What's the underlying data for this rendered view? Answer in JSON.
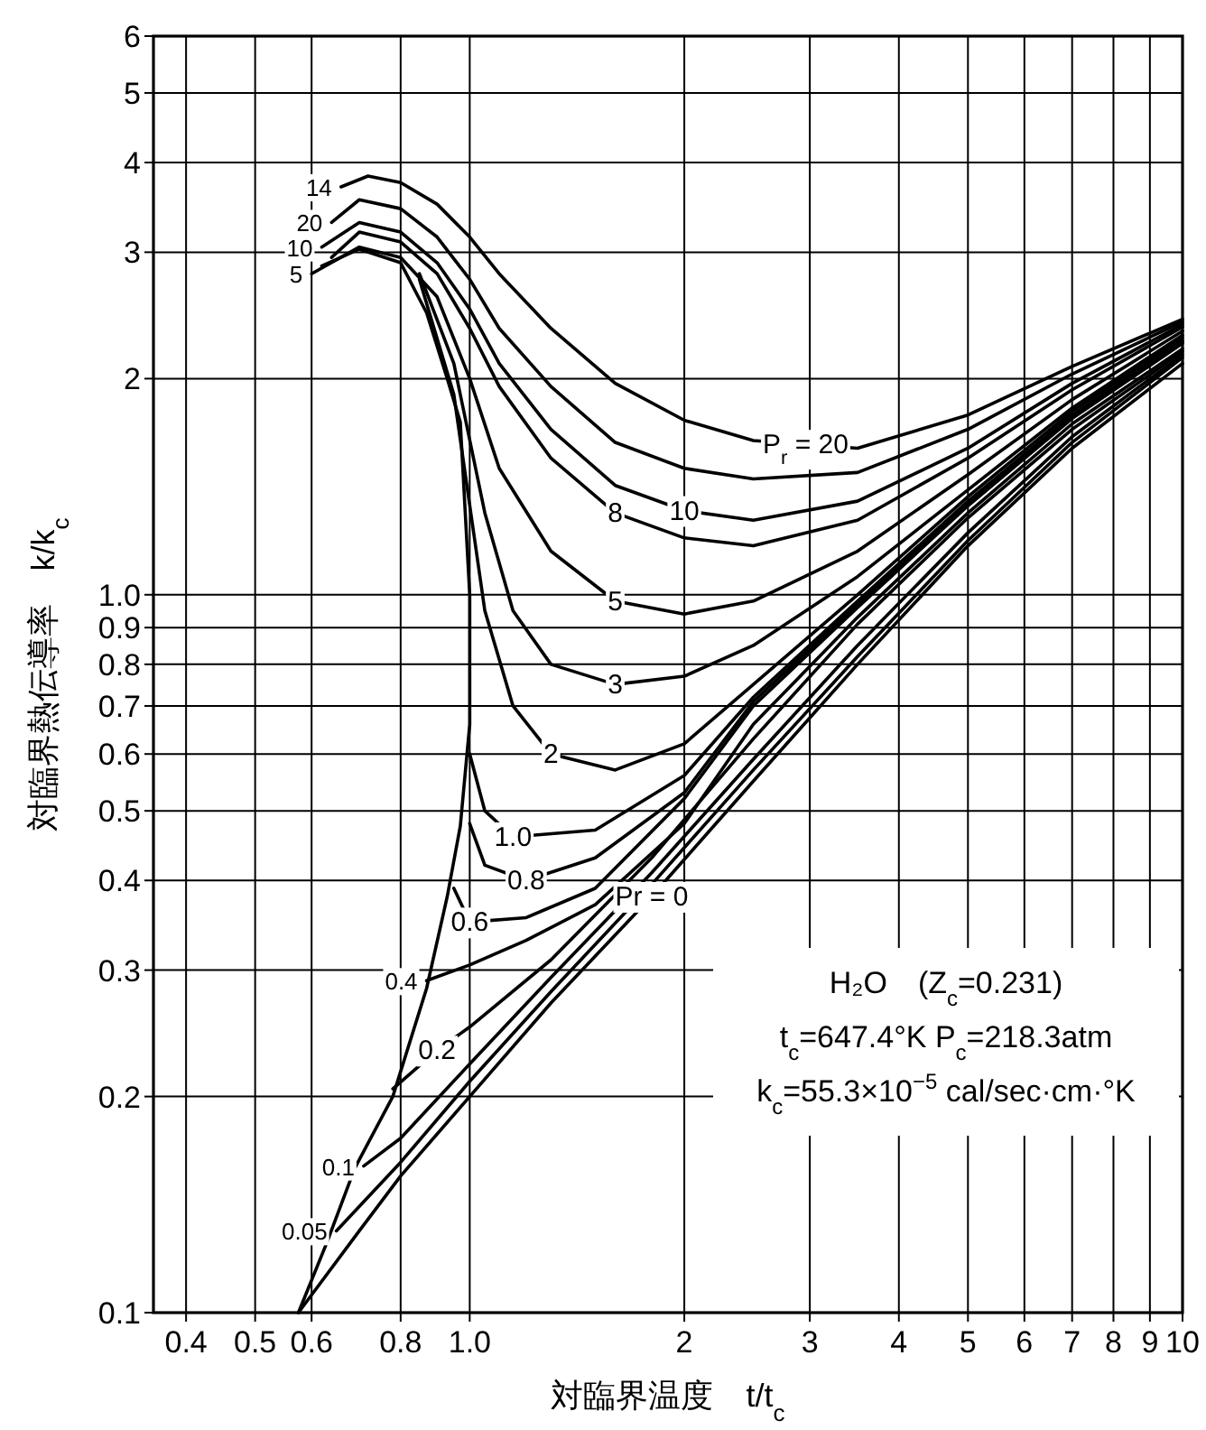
{
  "chart_data": {
    "type": "line",
    "xlabel": "対臨界温度　t/t$_{c}$",
    "ylabel": "対臨界熱伝導率　k/k$_{c}$",
    "log": "xy",
    "grid": true,
    "line_style": "solid",
    "xlim": [
      0.36,
      10
    ],
    "ylim": [
      0.1,
      6
    ],
    "xticks": [
      0.4,
      0.5,
      0.6,
      0.8,
      {
        "value": 1,
        "label": "1.0"
      },
      2,
      3,
      4,
      5,
      6,
      7,
      8,
      9,
      10
    ],
    "yticks": [
      0.1,
      0.2,
      0.3,
      0.4,
      0.5,
      0.6,
      0.7,
      0.8,
      0.9,
      {
        "value": 1,
        "label": "1.0"
      },
      2,
      3,
      4,
      5,
      6
    ],
    "series": [
      {
        "color": "#000000",
        "x": [
          0.62,
          0.7,
          0.8,
          0.87,
          0.93,
          0.97,
          1.0,
          1.0,
          0.97,
          0.93,
          0.87,
          0.78,
          0.69,
          0.63,
          0.575
        ],
        "values": [
          2.87,
          3.03,
          2.9,
          2.47,
          2.0,
          1.74,
          1.0,
          0.66,
          0.476,
          0.38,
          0.283,
          0.2,
          0.159,
          0.125,
          0.1
        ]
      },
      {
        "color": "#000000",
        "x": [
          0.575,
          0.7,
          0.8,
          1,
          1.3,
          1.8,
          2.5,
          3.5,
          5,
          7,
          10
        ],
        "values": [
          0.1,
          0.13,
          0.155,
          0.2,
          0.27,
          0.38,
          0.55,
          0.8,
          1.17,
          1.6,
          2.1
        ]
      },
      {
        "color": "#000000",
        "x": [
          0.65,
          0.8,
          1,
          1.3,
          1.8,
          2.5,
          3.5,
          5,
          7,
          10
        ],
        "values": [
          0.13,
          0.162,
          0.21,
          0.28,
          0.395,
          0.57,
          0.82,
          1.19,
          1.63,
          2.14
        ]
      },
      {
        "color": "#000000",
        "x": [
          0.71,
          0.8,
          1,
          1.3,
          1.8,
          2.5,
          3.5,
          5,
          7,
          10
        ],
        "values": [
          0.16,
          0.175,
          0.222,
          0.293,
          0.41,
          0.59,
          0.85,
          1.22,
          1.66,
          2.16
        ]
      },
      {
        "color": "#000000",
        "x": [
          0.78,
          0.9,
          1,
          1.3,
          1.8,
          2.5,
          3.5,
          5,
          7,
          10
        ],
        "values": [
          0.205,
          0.232,
          0.25,
          0.31,
          0.43,
          0.63,
          0.91,
          1.28,
          1.7,
          2.18
        ]
      },
      {
        "color": "#000000",
        "x": [
          0.87,
          1,
          1.2,
          1.5,
          2,
          2.5,
          3.5,
          5,
          7,
          10
        ],
        "values": [
          0.29,
          0.305,
          0.33,
          0.37,
          0.48,
          0.66,
          0.93,
          1.3,
          1.73,
          2.2
        ]
      },
      {
        "color": "#000000",
        "x": [
          0.95,
          1,
          1.2,
          1.5,
          2,
          2.5,
          3.5,
          5,
          7,
          10
        ],
        "values": [
          0.39,
          0.35,
          0.355,
          0.39,
          0.52,
          0.7,
          0.96,
          1.33,
          1.76,
          2.24
        ]
      },
      {
        "color": "#000000",
        "x": [
          1.0,
          1.05,
          1.2,
          1.5,
          2,
          2.5,
          3.5,
          5,
          7,
          10
        ],
        "values": [
          0.48,
          0.42,
          0.4,
          0.43,
          0.53,
          0.71,
          0.97,
          1.34,
          1.77,
          2.25
        ]
      },
      {
        "color": "#000000",
        "x": [
          1.0,
          1.05,
          1.15,
          1.5,
          2,
          2.5,
          3.5,
          5,
          7,
          10
        ],
        "values": [
          0.6,
          0.5,
          0.46,
          0.47,
          0.56,
          0.72,
          0.98,
          1.35,
          1.78,
          2.26
        ]
      },
      {
        "color": "#000000",
        "x": [
          0.85,
          0.95,
          1.05,
          1.15,
          1.3,
          1.6,
          2,
          2.5,
          3.5,
          5,
          7,
          10
        ],
        "values": [
          2.75,
          1.9,
          0.95,
          0.7,
          0.6,
          0.57,
          0.62,
          0.75,
          1.0,
          1.37,
          1.8,
          2.28
        ]
      },
      {
        "color": "#000000",
        "x": [
          0.85,
          0.95,
          1.05,
          1.15,
          1.3,
          1.6,
          2,
          2.5,
          3.5,
          5,
          7,
          10
        ],
        "values": [
          2.8,
          2.1,
          1.3,
          0.95,
          0.8,
          0.75,
          0.77,
          0.85,
          1.06,
          1.4,
          1.82,
          2.3
        ]
      },
      {
        "color": "#000000",
        "x": [
          0.6,
          0.7,
          0.8,
          0.9,
          1.0,
          1.1,
          1.3,
          1.6,
          2,
          2.5,
          3.5,
          5,
          7,
          10
        ],
        "values": [
          2.8,
          3.05,
          2.95,
          2.6,
          2.0,
          1.5,
          1.15,
          0.98,
          0.94,
          0.98,
          1.15,
          1.47,
          1.87,
          2.33
        ]
      },
      {
        "color": "#000000",
        "x": [
          0.64,
          0.7,
          0.8,
          0.9,
          1.0,
          1.1,
          1.3,
          1.6,
          2,
          2.5,
          3.5,
          5,
          7,
          10
        ],
        "values": [
          2.95,
          3.2,
          3.1,
          2.8,
          2.35,
          1.95,
          1.55,
          1.3,
          1.2,
          1.17,
          1.27,
          1.55,
          1.93,
          2.36
        ]
      },
      {
        "color": "#000000",
        "x": [
          0.62,
          0.7,
          0.8,
          0.9,
          1.0,
          1.1,
          1.3,
          1.6,
          2,
          2.5,
          3.5,
          5,
          7,
          10
        ],
        "values": [
          3.05,
          3.3,
          3.2,
          2.9,
          2.5,
          2.1,
          1.7,
          1.42,
          1.31,
          1.27,
          1.35,
          1.6,
          1.97,
          2.38
        ]
      },
      {
        "color": "#000000",
        "x": [
          0.64,
          0.7,
          0.8,
          0.9,
          1.0,
          1.1,
          1.3,
          1.6,
          2,
          2.5,
          3.5,
          5,
          7,
          10
        ],
        "values": [
          3.3,
          3.55,
          3.45,
          3.15,
          2.75,
          2.35,
          1.95,
          1.63,
          1.5,
          1.45,
          1.48,
          1.7,
          2.03,
          2.4
        ]
      },
      {
        "color": "#000000",
        "x": [
          0.66,
          0.72,
          0.8,
          0.9,
          1.0,
          1.1,
          1.3,
          1.6,
          2,
          2.5,
          3.5,
          5,
          7,
          10
        ],
        "values": [
          3.7,
          3.83,
          3.75,
          3.5,
          3.15,
          2.8,
          2.35,
          1.97,
          1.75,
          1.64,
          1.6,
          1.78,
          2.08,
          2.42
        ]
      }
    ],
    "annotations": [
      {
        "text": "14",
        "x": 0.66,
        "y": 3.7
      },
      {
        "text": "20",
        "x": 0.64,
        "y": 3.3
      },
      {
        "text": "10",
        "x": 0.62,
        "y": 3.05
      },
      {
        "text": "5",
        "x": 0.6,
        "y": 2.8
      },
      {
        "text": "P$_{r}$ = 20",
        "x": 2.96,
        "y": 1.62
      },
      {
        "text": "10",
        "x": 2,
        "y": 1.31
      },
      {
        "text": "8",
        "x": 1.6,
        "y": 1.3
      },
      {
        "text": "5",
        "x": 1.6,
        "y": 0.98
      },
      {
        "text": "3",
        "x": 1.6,
        "y": 0.75
      },
      {
        "text": "2",
        "x": 1.3,
        "y": 0.6
      },
      {
        "text": "1.0",
        "x": 1.15,
        "y": 0.46
      },
      {
        "text": "0.8",
        "x": 1.2,
        "y": 0.4
      },
      {
        "text": "0.6",
        "x": 1.0,
        "y": 0.35
      },
      {
        "text": "0.4",
        "x": 0.87,
        "y": 0.29
      },
      {
        "text": "0.2",
        "x": 0.9,
        "y": 0.232
      },
      {
        "text": "0.1",
        "x": 0.71,
        "y": 0.16
      },
      {
        "text": "0.05",
        "x": 0.65,
        "y": 0.13
      },
      {
        "text": "Pr = 0",
        "x": 1.8,
        "y": 0.38
      },
      "H₂O　(Z$_{c}$=0.231)",
      "t$_{c}$=647.4°K  P$_{c}$=218.3atm",
      "k$_{c}$=55.3×10$^{−5}$ cal/sec·cm·°K"
    ]
  }
}
